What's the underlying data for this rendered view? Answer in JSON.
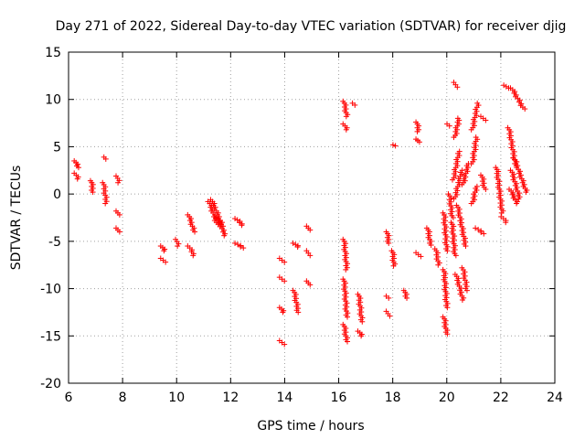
{
  "chart_data": {
    "type": "scatter",
    "title": "Day 271 of 2022, Sidereal Day-to-day VTEC variation (SDTVAR) for receiver djig",
    "xlabel": "GPS time / hours",
    "ylabel": "SDTVAR / TECUs",
    "xlim": [
      6,
      24
    ],
    "ylim": [
      -20,
      15
    ],
    "xticks": [
      6,
      8,
      10,
      12,
      14,
      16,
      18,
      20,
      22,
      24
    ],
    "yticks": [
      -20,
      -15,
      -10,
      -5,
      0,
      5,
      10,
      15
    ],
    "grid": true,
    "marker": "plus",
    "color": "#ff0000",
    "clusters": [
      {
        "x": [
          6.25,
          6.35
        ],
        "y": [
          3.5,
          2.8
        ]
      },
      {
        "x": [
          6.25,
          6.35
        ],
        "y": [
          2.2,
          1.6
        ]
      },
      {
        "x": [
          6.85,
          6.9
        ],
        "y": [
          1.4,
          0.2
        ]
      },
      {
        "x": [
          7.3,
          7.4
        ],
        "y": [
          1.2,
          -1.0
        ]
      },
      {
        "x": [
          7.35,
          7.38
        ],
        "y": [
          3.9,
          3.7
        ]
      },
      {
        "x": [
          7.8,
          7.85
        ],
        "y": [
          1.9,
          1.2
        ]
      },
      {
        "x": [
          7.8,
          7.85
        ],
        "y": [
          -1.8,
          -2.2
        ]
      },
      {
        "x": [
          7.8,
          7.85
        ],
        "y": [
          -3.6,
          -4.0
        ]
      },
      {
        "x": [
          9.45,
          9.55
        ],
        "y": [
          -5.5,
          -6.0
        ]
      },
      {
        "x": [
          9.45,
          9.55
        ],
        "y": [
          -6.8,
          -7.2
        ]
      },
      {
        "x": [
          10.0,
          10.05
        ],
        "y": [
          -4.8,
          -5.5
        ]
      },
      {
        "x": [
          10.45,
          10.65
        ],
        "y": [
          -2.2,
          -4.0
        ]
      },
      {
        "x": [
          10.45,
          10.65
        ],
        "y": [
          -5.5,
          -6.5
        ]
      },
      {
        "x": [
          11.2,
          11.5
        ],
        "y": [
          -0.8,
          -3.2
        ]
      },
      {
        "x": [
          11.3,
          11.7
        ],
        "y": [
          -0.6,
          -3.4
        ]
      },
      {
        "x": [
          11.5,
          11.8
        ],
        "y": [
          -2.5,
          -4.4
        ]
      },
      {
        "x": [
          12.2,
          12.45
        ],
        "y": [
          -2.6,
          -3.3
        ]
      },
      {
        "x": [
          12.2,
          12.45
        ],
        "y": [
          -5.2,
          -5.7
        ]
      },
      {
        "x": [
          13.85,
          13.95
        ],
        "y": [
          -6.8,
          -7.2
        ]
      },
      {
        "x": [
          13.85,
          13.95
        ],
        "y": [
          -8.8,
          -9.2
        ]
      },
      {
        "x": [
          13.85,
          13.95
        ],
        "y": [
          -12.0,
          -12.5
        ]
      },
      {
        "x": [
          13.85,
          13.95
        ],
        "y": [
          -15.5,
          -15.9
        ]
      },
      {
        "x": [
          14.35,
          14.5
        ],
        "y": [
          -5.2,
          -5.6
        ]
      },
      {
        "x": [
          14.35,
          14.5
        ],
        "y": [
          -10.2,
          -12.5
        ]
      },
      {
        "x": [
          14.85,
          14.9
        ],
        "y": [
          -3.4,
          -3.8
        ]
      },
      {
        "x": [
          14.85,
          14.9
        ],
        "y": [
          -6.0,
          -6.5
        ]
      },
      {
        "x": [
          14.85,
          14.9
        ],
        "y": [
          -9.2,
          -9.6
        ]
      },
      {
        "x": [
          16.2,
          16.3
        ],
        "y": [
          9.8,
          8.2
        ]
      },
      {
        "x": [
          16.2,
          16.3
        ],
        "y": [
          7.4,
          6.8
        ]
      },
      {
        "x": [
          16.55,
          16.6
        ],
        "y": [
          9.6,
          9.4
        ]
      },
      {
        "x": [
          16.2,
          16.3
        ],
        "y": [
          -4.8,
          -8.0
        ]
      },
      {
        "x": [
          16.2,
          16.3
        ],
        "y": [
          -9.0,
          -13.0
        ]
      },
      {
        "x": [
          16.2,
          16.3
        ],
        "y": [
          -13.8,
          -15.6
        ]
      },
      {
        "x": [
          16.75,
          16.85
        ],
        "y": [
          -10.6,
          -13.5
        ]
      },
      {
        "x": [
          16.75,
          16.85
        ],
        "y": [
          -14.5,
          -15.0
        ]
      },
      {
        "x": [
          17.8,
          17.85
        ],
        "y": [
          -4.0,
          -5.2
        ]
      },
      {
        "x": [
          17.8,
          17.85
        ],
        "y": [
          -10.8,
          -11.0
        ]
      },
      {
        "x": [
          17.8,
          17.85
        ],
        "y": [
          -12.4,
          -12.9
        ]
      },
      {
        "x": [
          18.05,
          18.1
        ],
        "y": [
          5.2,
          5.1
        ]
      },
      {
        "x": [
          18.0,
          18.05
        ],
        "y": [
          -6.0,
          -7.6
        ]
      },
      {
        "x": [
          18.45,
          18.5
        ],
        "y": [
          -10.2,
          -11.0
        ]
      },
      {
        "x": [
          18.9,
          18.95
        ],
        "y": [
          7.6,
          6.6
        ]
      },
      {
        "x": [
          18.9,
          18.95
        ],
        "y": [
          5.8,
          5.5
        ]
      },
      {
        "x": [
          18.9,
          19.0
        ],
        "y": [
          -6.2,
          -6.6
        ]
      },
      {
        "x": [
          19.3,
          19.4
        ],
        "y": [
          -3.6,
          -5.4
        ]
      },
      {
        "x": [
          19.6,
          19.7
        ],
        "y": [
          -5.8,
          -7.5
        ]
      },
      {
        "x": [
          19.9,
          20.0
        ],
        "y": [
          -2.0,
          -6.0
        ]
      },
      {
        "x": [
          19.9,
          20.0
        ],
        "y": [
          -8.0,
          -12.0
        ]
      },
      {
        "x": [
          19.9,
          20.0
        ],
        "y": [
          -13.0,
          -14.8
        ]
      },
      {
        "x": [
          20.05,
          20.1
        ],
        "y": [
          7.4,
          7.2
        ]
      },
      {
        "x": [
          20.1,
          20.2
        ],
        "y": [
          0.0,
          -2.5
        ]
      },
      {
        "x": [
          20.2,
          20.3
        ],
        "y": [
          -3.0,
          -6.5
        ]
      },
      {
        "x": [
          20.3,
          20.35
        ],
        "y": [
          11.8,
          11.3
        ]
      },
      {
        "x": [
          20.3,
          20.45
        ],
        "y": [
          6.0,
          8.0
        ]
      },
      {
        "x": [
          20.25,
          20.45
        ],
        "y": [
          1.5,
          4.5
        ]
      },
      {
        "x": [
          20.3,
          20.55
        ],
        "y": [
          -0.5,
          2.5
        ]
      },
      {
        "x": [
          20.35,
          20.6
        ],
        "y": [
          -8.5,
          -11.2
        ]
      },
      {
        "x": [
          20.4,
          20.7
        ],
        "y": [
          -1.2,
          -5.5
        ]
      },
      {
        "x": [
          20.6,
          20.75
        ],
        "y": [
          -7.8,
          -10.2
        ]
      },
      {
        "x": [
          20.6,
          20.8
        ],
        "y": [
          1.0,
          3.2
        ]
      },
      {
        "x": [
          20.95,
          21.15
        ],
        "y": [
          6.8,
          9.6
        ]
      },
      {
        "x": [
          20.95,
          21.1
        ],
        "y": [
          3.2,
          6.0
        ]
      },
      {
        "x": [
          20.95,
          21.1
        ],
        "y": [
          -1.0,
          0.8
        ]
      },
      {
        "x": [
          21.1,
          21.35
        ],
        "y": [
          -3.6,
          -4.2
        ]
      },
      {
        "x": [
          21.3,
          21.4
        ],
        "y": [
          8.2,
          7.8
        ]
      },
      {
        "x": [
          21.3,
          21.4
        ],
        "y": [
          2.0,
          0.5
        ]
      },
      {
        "x": [
          21.85,
          22.05
        ],
        "y": [
          2.8,
          -2.0
        ]
      },
      {
        "x": [
          22.05,
          22.2
        ],
        "y": [
          -2.4,
          -3.0
        ]
      },
      {
        "x": [
          22.15,
          22.25
        ],
        "y": [
          11.5,
          11.2
        ]
      },
      {
        "x": [
          22.4,
          22.85
        ],
        "y": [
          11.2,
          9.0
        ]
      },
      {
        "x": [
          22.3,
          22.55
        ],
        "y": [
          7.0,
          3.0
        ]
      },
      {
        "x": [
          22.35,
          22.6
        ],
        "y": [
          0.5,
          -1.0
        ]
      },
      {
        "x": [
          22.5,
          22.95
        ],
        "y": [
          3.8,
          0.2
        ]
      },
      {
        "x": [
          22.4,
          22.7
        ],
        "y": [
          2.5,
          -0.5
        ]
      }
    ]
  }
}
